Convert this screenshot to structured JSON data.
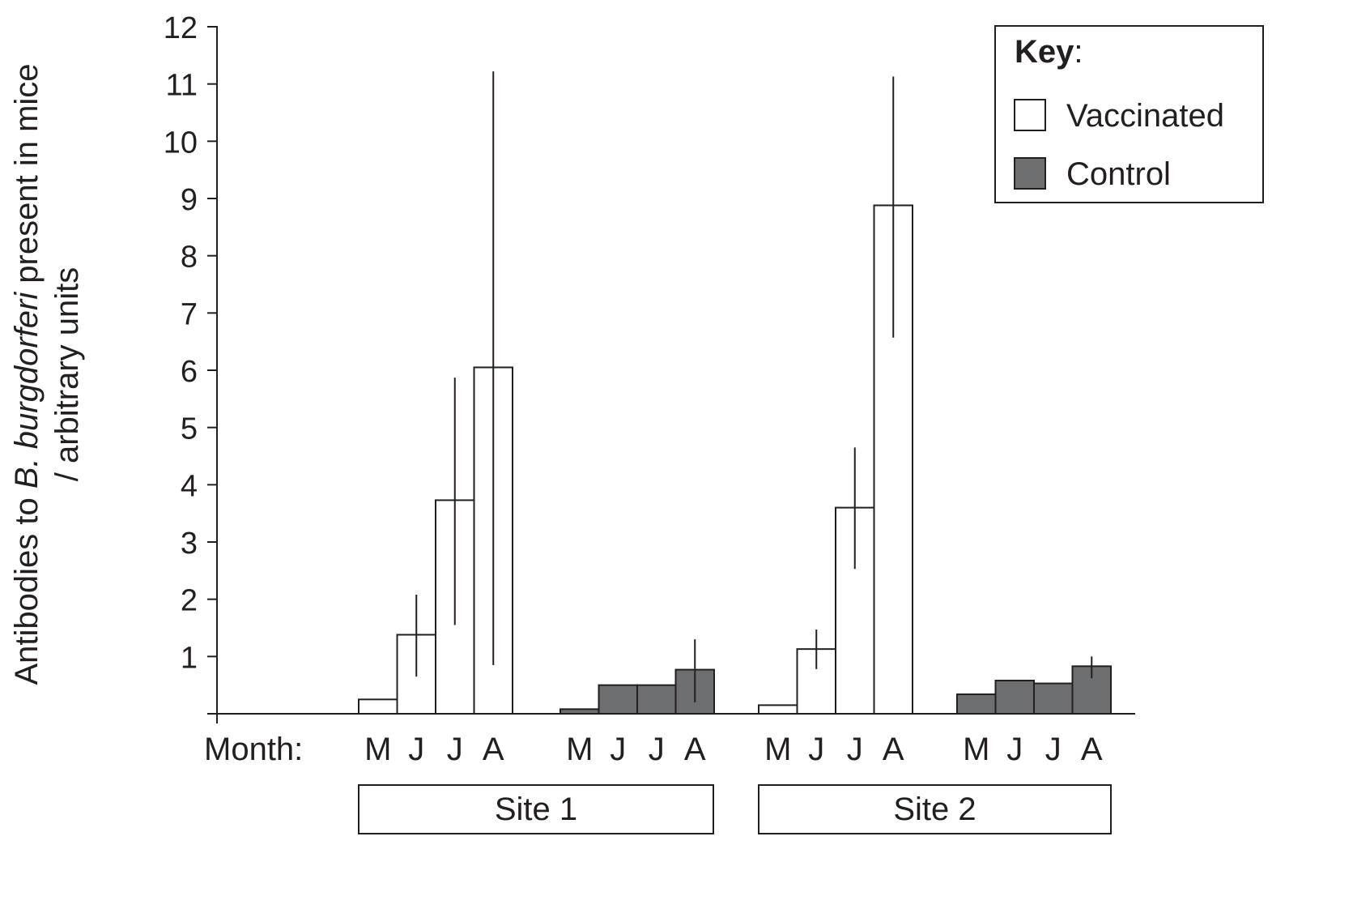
{
  "chart_data": {
    "type": "bar",
    "ylabel_parts": [
      "Antibodies to ",
      "B. burgdorferi",
      " present in mice"
    ],
    "ylabel_line2": "/ arbitrary units",
    "ylim": [
      0,
      12
    ],
    "yticks": [
      1,
      2,
      3,
      4,
      5,
      6,
      7,
      8,
      9,
      10,
      11,
      12
    ],
    "month_label": "Month:",
    "legend": {
      "title": "Key",
      "title_suffix": ":",
      "placement": "top-right",
      "items": [
        {
          "name": "Vaccinated",
          "color": "#ffffff"
        },
        {
          "name": "Control",
          "color": "#6d6e70"
        }
      ]
    },
    "groups": [
      {
        "site": "Site 1",
        "series": [
          {
            "name": "Vaccinated",
            "color": "#ffffff",
            "months": [
              "M",
              "J",
              "J",
              "A"
            ],
            "values": [
              0.25,
              1.38,
              3.73,
              6.05
            ],
            "err_low": [
              0.25,
              0.65,
              1.55,
              0.85
            ],
            "err_high": [
              0.25,
              2.08,
              5.87,
              11.22
            ]
          },
          {
            "name": "Control",
            "color": "#6d6e70",
            "months": [
              "M",
              "J",
              "J",
              "A"
            ],
            "values": [
              0.08,
              0.5,
              0.5,
              0.77
            ],
            "err_low": [
              0.08,
              0.5,
              0.5,
              0.2
            ],
            "err_high": [
              0.08,
              0.5,
              0.5,
              1.3
            ]
          }
        ]
      },
      {
        "site": "Site 2",
        "series": [
          {
            "name": "Vaccinated",
            "color": "#ffffff",
            "months": [
              "M",
              "J",
              "J",
              "A"
            ],
            "values": [
              0.15,
              1.13,
              3.6,
              8.88
            ],
            "err_low": [
              0.15,
              0.78,
              2.53,
              6.57
            ],
            "err_high": [
              0.15,
              1.47,
              4.65,
              11.13
            ]
          },
          {
            "name": "Control",
            "color": "#6d6e70",
            "months": [
              "M",
              "J",
              "J",
              "A"
            ],
            "values": [
              0.34,
              0.58,
              0.53,
              0.83
            ],
            "err_low": [
              0.34,
              0.58,
              0.53,
              0.62
            ],
            "err_high": [
              0.34,
              0.58,
              0.53,
              1.0
            ]
          }
        ]
      }
    ]
  }
}
